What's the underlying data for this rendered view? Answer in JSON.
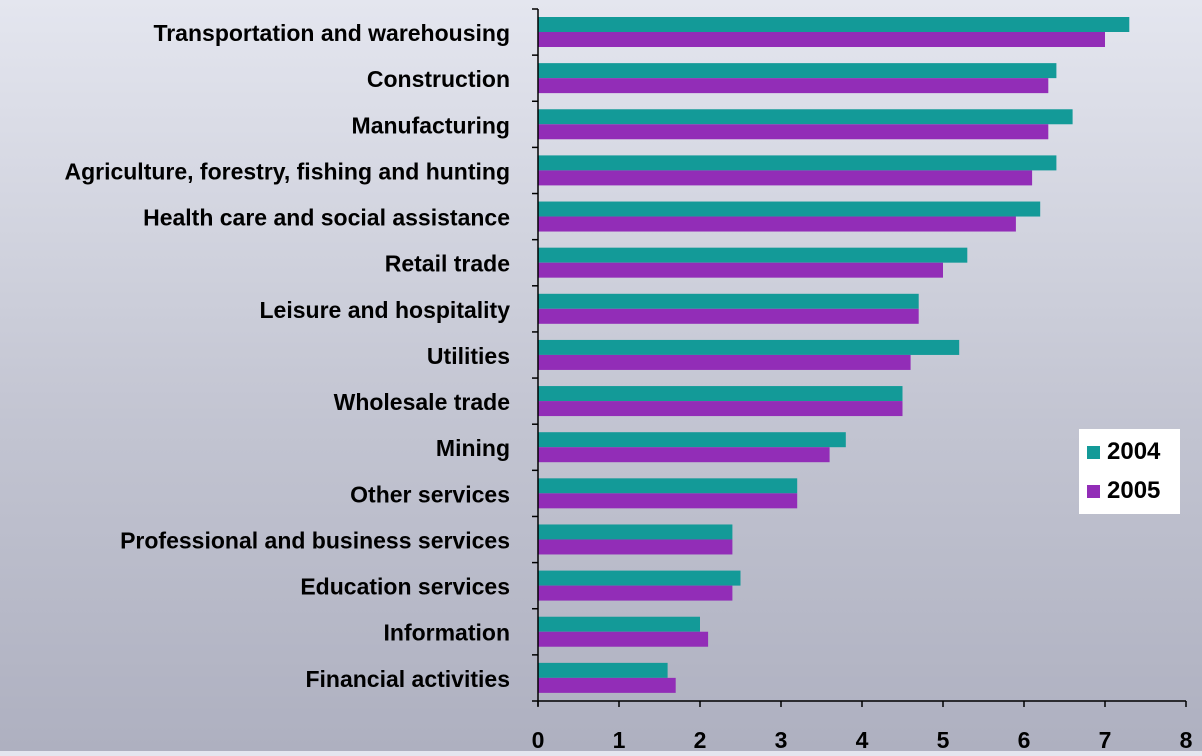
{
  "chart_data": {
    "type": "bar",
    "orientation": "horizontal",
    "title": "",
    "xlabel": "",
    "ylabel": "",
    "xlim": [
      0,
      8
    ],
    "x_ticks": [
      "0",
      "1",
      "2",
      "3",
      "4",
      "5",
      "6",
      "7",
      "8"
    ],
    "grid": false,
    "legend_position": "right",
    "categories": [
      "Transportation and warehousing",
      "Construction",
      "Manufacturing",
      "Agriculture, forestry, fishing and hunting",
      "Health care and social assistance",
      "Retail trade",
      "Leisure and hospitality",
      "Utilities",
      "Wholesale trade",
      "Mining",
      "Other services",
      "Professional and business services",
      "Education services",
      "Information",
      "Financial activities"
    ],
    "series": [
      {
        "name": "2004",
        "color": "#139a98",
        "values": [
          7.3,
          6.4,
          6.6,
          6.4,
          6.2,
          5.3,
          4.7,
          5.2,
          4.5,
          3.8,
          3.2,
          2.4,
          2.5,
          2.0,
          1.6
        ]
      },
      {
        "name": "2005",
        "color": "#922db7",
        "values": [
          7.0,
          6.3,
          6.3,
          6.1,
          5.9,
          5.0,
          4.7,
          4.6,
          4.5,
          3.6,
          3.2,
          2.4,
          2.4,
          2.1,
          1.7
        ]
      }
    ]
  }
}
